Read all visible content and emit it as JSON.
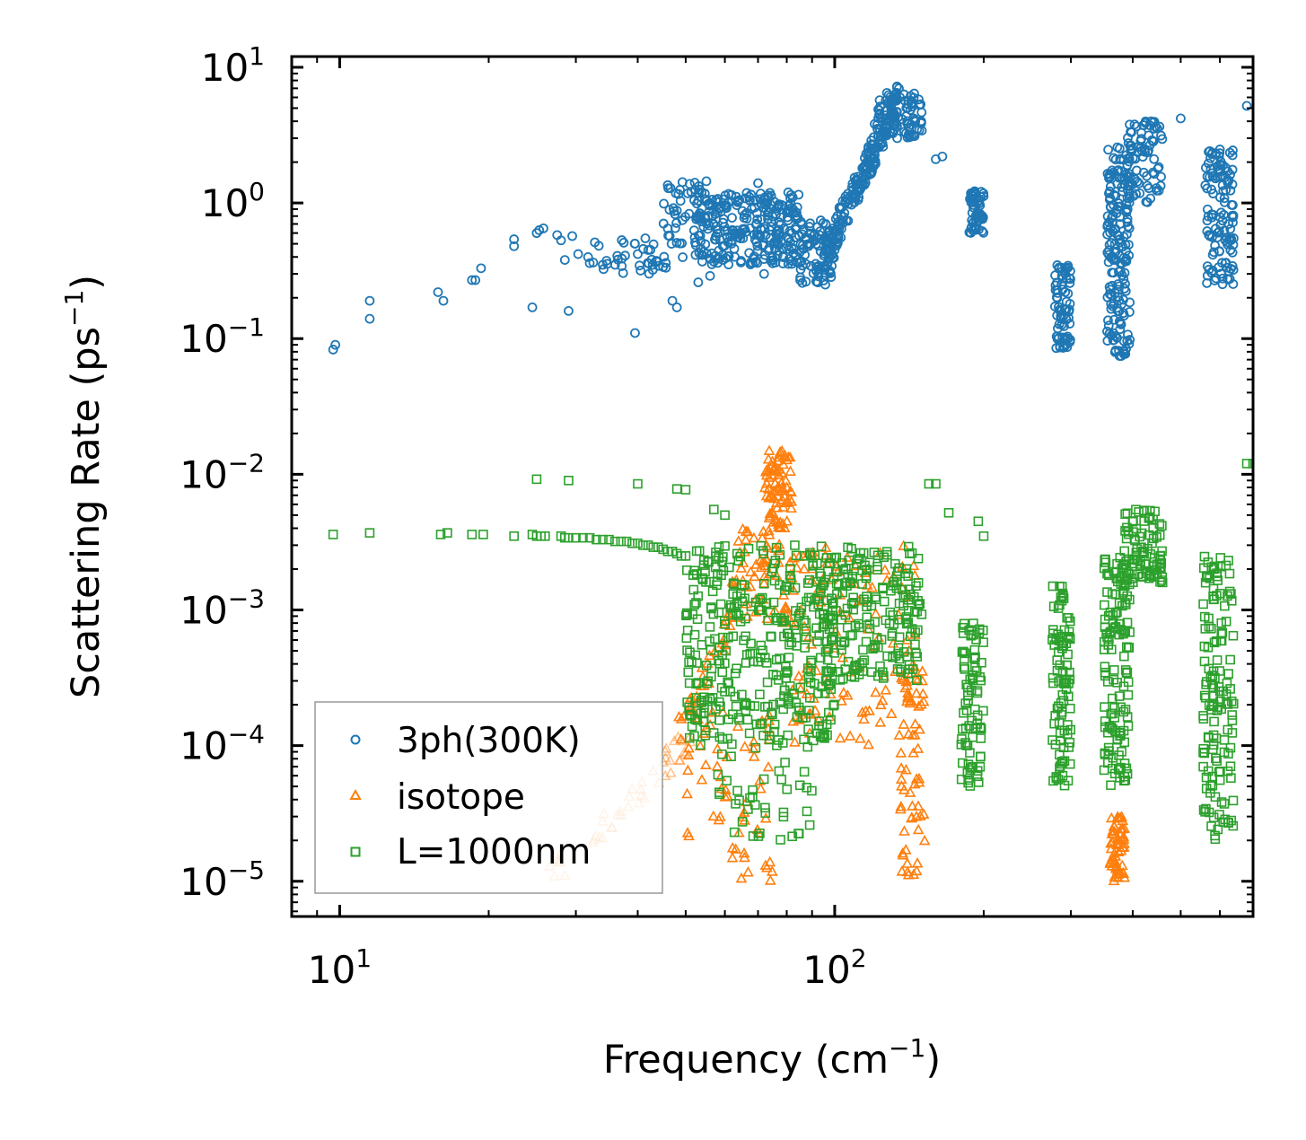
{
  "chart_data": {
    "type": "scatter",
    "xlabel": "Frequency (cm",
    "xlabel_sup": "−1",
    "xlabel_tail": ")",
    "ylabel": "Scattering Rate (ps",
    "ylabel_sup": "−1",
    "ylabel_tail": ")",
    "xscale": "log",
    "yscale": "log",
    "xlim": [
      8.0,
      700
    ],
    "ylim": [
      5.5e-06,
      12
    ],
    "x_ticks": [
      {
        "value": 10,
        "base": "10",
        "exp": "1"
      },
      {
        "value": 100,
        "base": "10",
        "exp": "2"
      }
    ],
    "y_ticks": [
      {
        "value": 10,
        "base": "10",
        "exp": "1"
      },
      {
        "value": 1,
        "base": "10",
        "exp": "0"
      },
      {
        "value": 0.1,
        "base": "10",
        "exp": "−1"
      },
      {
        "value": 0.01,
        "base": "10",
        "exp": "−2"
      },
      {
        "value": 0.001,
        "base": "10",
        "exp": "−3"
      },
      {
        "value": 0.0001,
        "base": "10",
        "exp": "−4"
      },
      {
        "value": 1e-05,
        "base": "10",
        "exp": "−5"
      }
    ],
    "legend_position": "lower-left",
    "series": [
      {
        "name": "3ph(300K)",
        "marker": "circle",
        "color": "#1f77b4",
        "clusters": [
          {
            "x": [
              9.7,
              9.8,
              11.5,
              11.5,
              15.8,
              16.2,
              18.5,
              18.8,
              19.3,
              22.5,
              22.5,
              24.5,
              25.0,
              25.3,
              25.8,
              27.5,
              28.0,
              28.5,
              29.0,
              29.5,
              32.0,
              34.0,
              36.0,
              39.5,
              40.0,
              42.0,
              47.0,
              48.0,
              53.0,
              56.0,
              70.0,
              72.0,
              160.0,
              165.0,
              500.0,
              680.0
            ],
            "y": [
              0.083,
              0.09,
              0.19,
              0.14,
              0.22,
              0.19,
              0.27,
              0.27,
              0.33,
              0.54,
              0.48,
              0.17,
              0.6,
              0.63,
              0.65,
              0.58,
              0.53,
              0.38,
              0.16,
              0.57,
              0.36,
              0.35,
              0.35,
              0.11,
              0.42,
              0.45,
              0.19,
              0.17,
              0.26,
              0.29,
              1.4,
              0.3,
              2.1,
              2.2,
              4.2,
              5.2
            ]
          },
          {
            "x0": 30,
            "x1": 50,
            "y0": 0.3,
            "y1": 0.55,
            "n": 40
          },
          {
            "x0": 45,
            "x1": 58,
            "y0": 0.5,
            "y1": 1.45,
            "n": 50
          },
          {
            "x0": 52,
            "x1": 85,
            "y0": 0.35,
            "y1": 1.2,
            "n": 260
          },
          {
            "x0": 85,
            "x1": 100,
            "y0": 0.25,
            "y1": 0.8,
            "n": 70
          },
          {
            "x0": 95,
            "x1": 135,
            "y0": 0.4,
            "y1": 6.0,
            "n": 220,
            "trend": true
          },
          {
            "x0": 120,
            "x1": 150,
            "y0": 3.0,
            "y1": 6.5,
            "n": 80
          },
          {
            "x0": 187,
            "x1": 200,
            "y0": 0.6,
            "y1": 1.3,
            "n": 60
          },
          {
            "x0": 278,
            "x1": 300,
            "y0": 0.085,
            "y1": 0.35,
            "n": 70
          },
          {
            "x0": 355,
            "x1": 395,
            "y0": 0.07,
            "y1": 2.6,
            "n": 180
          },
          {
            "x0": 390,
            "x1": 460,
            "y0": 1.0,
            "y1": 4.0,
            "n": 80
          },
          {
            "x0": 560,
            "x1": 640,
            "y0": 0.25,
            "y1": 2.5,
            "n": 120
          }
        ]
      },
      {
        "name": "isotope",
        "marker": "triangle",
        "color": "#ff7f0e",
        "clusters": [
          {
            "x0": 26,
            "x1": 52,
            "y0": 1e-05,
            "y1": 0.00012,
            "n": 45,
            "trend": true,
            "light": true
          },
          {
            "x0": 48,
            "x1": 62,
            "y0": 0.00012,
            "y1": 0.0008,
            "n": 30,
            "trend": true
          },
          {
            "x0": 50,
            "x1": 75,
            "y0": 1e-05,
            "y1": 0.0002,
            "n": 60
          },
          {
            "x0": 62,
            "x1": 80,
            "y0": 0.0008,
            "y1": 0.004,
            "n": 60
          },
          {
            "x0": 72,
            "x1": 82,
            "y0": 0.004,
            "y1": 0.015,
            "n": 80
          },
          {
            "x0": 80,
            "x1": 150,
            "y0": 0.0001,
            "y1": 0.003,
            "n": 120
          },
          {
            "x0": 135,
            "x1": 152,
            "y0": 1e-05,
            "y1": 0.0004,
            "n": 60
          },
          {
            "x0": 360,
            "x1": 385,
            "y0": 1e-05,
            "y1": 3e-05,
            "n": 60
          }
        ]
      },
      {
        "name": "L=1000nm",
        "marker": "square",
        "color": "#2ca02c",
        "clusters": [
          {
            "x": [
              9.7,
              11.5,
              16.0,
              16.5,
              18.5,
              19.5,
              22.5,
              24.5,
              25.0,
              25.5,
              26.0,
              28.0,
              28.5,
              29.0,
              30.0,
              31.0,
              32.0,
              33.0,
              34.0,
              35.0,
              36.0,
              37.0,
              38.0,
              39.0,
              40.0,
              41.0,
              42.0,
              43.0,
              44.0,
              45.0,
              46.0,
              47.0,
              48.0,
              49.0,
              50.0,
              25.0,
              29.0,
              40.0,
              48.0,
              50.0,
              57.0,
              60.0,
              155.0,
              160.0,
              170.0,
              195.0,
              200.0,
              680.0,
              700.0
            ],
            "y": [
              0.0036,
              0.0037,
              0.0036,
              0.0037,
              0.0036,
              0.0036,
              0.0035,
              0.0036,
              0.0035,
              0.0035,
              0.0035,
              0.0035,
              0.0034,
              0.0034,
              0.0034,
              0.0034,
              0.0034,
              0.0033,
              0.0033,
              0.0033,
              0.0032,
              0.0032,
              0.0032,
              0.0031,
              0.0031,
              0.003,
              0.003,
              0.0029,
              0.0029,
              0.0028,
              0.0027,
              0.0027,
              0.0026,
              0.0025,
              0.0025,
              0.0092,
              0.009,
              0.0085,
              0.0078,
              0.0077,
              0.0055,
              0.005,
              0.0085,
              0.0085,
              0.0052,
              0.0045,
              0.0035,
              0.012,
              0.012
            ]
          },
          {
            "x0": 50,
            "x1": 100,
            "y0": 0.0001,
            "y1": 0.003,
            "n": 360
          },
          {
            "x0": 58,
            "x1": 90,
            "y0": 2e-05,
            "y1": 0.0001,
            "n": 40
          },
          {
            "x0": 95,
            "x1": 150,
            "y0": 0.0003,
            "y1": 0.003,
            "n": 200
          },
          {
            "x0": 180,
            "x1": 200,
            "y0": 5e-05,
            "y1": 0.0008,
            "n": 80
          },
          {
            "x0": 275,
            "x1": 300,
            "y0": 5e-05,
            "y1": 0.0015,
            "n": 90
          },
          {
            "x0": 350,
            "x1": 395,
            "y0": 5e-05,
            "y1": 0.0025,
            "n": 130
          },
          {
            "x0": 380,
            "x1": 460,
            "y0": 0.0015,
            "y1": 0.0055,
            "n": 90
          },
          {
            "x0": 555,
            "x1": 640,
            "y0": 2e-05,
            "y1": 0.0025,
            "n": 140
          }
        ]
      }
    ]
  }
}
